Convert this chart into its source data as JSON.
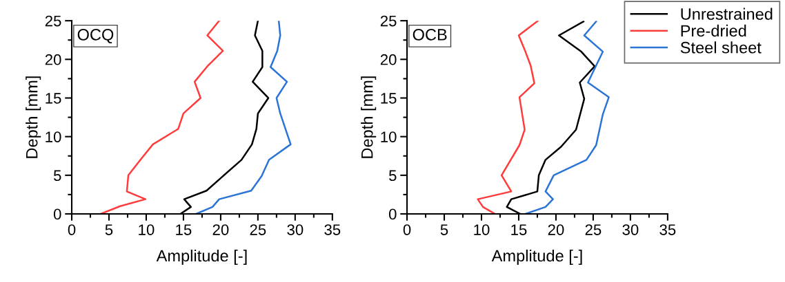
{
  "chart_data": [
    {
      "type": "line",
      "annotations": [
        "OCQ"
      ],
      "xlabel": "Amplitude [-]",
      "ylabel": "Depth [mm]",
      "xlim": [
        0,
        35
      ],
      "xticks": [
        0,
        5,
        10,
        15,
        20,
        25,
        30,
        35
      ],
      "ylim": [
        0,
        25
      ],
      "yticks": [
        0,
        5,
        10,
        15,
        20,
        25
      ],
      "grid": false,
      "legend": false,
      "series": [
        {
          "color": "#000000",
          "x": [
            14.6,
            16.0,
            15.1,
            18.1,
            20.2,
            22.8,
            24.2,
            24.8,
            25.0,
            26.4,
            24.3,
            25.6,
            25.6,
            24.6,
            25.0
          ],
          "values": [
            0,
            0.9,
            1.9,
            3.0,
            4.8,
            7.0,
            9.0,
            11.0,
            13.0,
            15.0,
            17.1,
            19.0,
            21.1,
            23.1,
            25.0
          ]
        },
        {
          "color": "#ff3b3b",
          "x": [
            3.9,
            6.5,
            9.9,
            7.4,
            7.6,
            9.3,
            10.9,
            14.3,
            15.0,
            17.3,
            16.5,
            18.3,
            20.3,
            18.2,
            19.8
          ],
          "values": [
            0,
            1.0,
            1.9,
            2.9,
            5.0,
            7.1,
            9.0,
            11.0,
            13.0,
            15.0,
            17.1,
            19.2,
            21.1,
            23.1,
            25.0
          ]
        },
        {
          "color": "#2a74d6",
          "x": [
            16.7,
            18.9,
            19.8,
            24.1,
            25.5,
            26.5,
            29.4,
            28.0,
            27.5,
            28.9,
            26.7,
            27.6,
            28.0,
            27.8
          ],
          "values": [
            0,
            0.9,
            1.9,
            3.0,
            4.9,
            7.0,
            9.0,
            13.0,
            15.0,
            17.1,
            19.0,
            21.1,
            23.1,
            25.0
          ]
        }
      ]
    },
    {
      "type": "line",
      "annotations": [
        "OCB"
      ],
      "xlabel": "Amplitude [-]",
      "ylabel": "Depth [mm]",
      "xlim": [
        0,
        35
      ],
      "xticks": [
        0,
        5,
        10,
        15,
        20,
        25,
        30,
        35
      ],
      "ylim": [
        0,
        25
      ],
      "yticks": [
        0,
        5,
        10,
        15,
        20,
        25
      ],
      "grid": false,
      "legend": "top right",
      "series": [
        {
          "name": "Unrestrained",
          "color": "#000000",
          "x": [
            15.2,
            13.4,
            14.0,
            17.5,
            17.7,
            18.6,
            20.7,
            22.7,
            23.8,
            23.2,
            25.2,
            23.4,
            20.4,
            23.7
          ],
          "values": [
            0,
            0.9,
            1.9,
            2.9,
            5.0,
            7.0,
            8.7,
            10.9,
            14.9,
            17.0,
            19.1,
            21.0,
            23.1,
            24.9
          ]
        },
        {
          "name": "Pre-dried",
          "color": "#ff3b3b",
          "x": [
            11.8,
            10.2,
            9.5,
            14.0,
            12.7,
            15.1,
            15.8,
            15.1,
            17.1,
            16.6,
            15.9,
            15.0,
            17.6
          ],
          "values": [
            0,
            0.9,
            1.9,
            2.9,
            5.0,
            8.9,
            10.9,
            15.1,
            16.9,
            19.2,
            21.0,
            23.1,
            25.0
          ]
        },
        {
          "name": "Steel sheet",
          "color": "#2a74d6",
          "x": [
            15.9,
            18.6,
            19.6,
            18.6,
            19.7,
            24.1,
            25.4,
            26.3,
            27.1,
            24.3,
            26.3,
            23.8,
            25.4
          ],
          "values": [
            0,
            0.9,
            1.9,
            2.9,
            5.0,
            7.0,
            8.9,
            12.9,
            15.1,
            17.0,
            21.0,
            23.1,
            24.9
          ]
        }
      ]
    }
  ]
}
